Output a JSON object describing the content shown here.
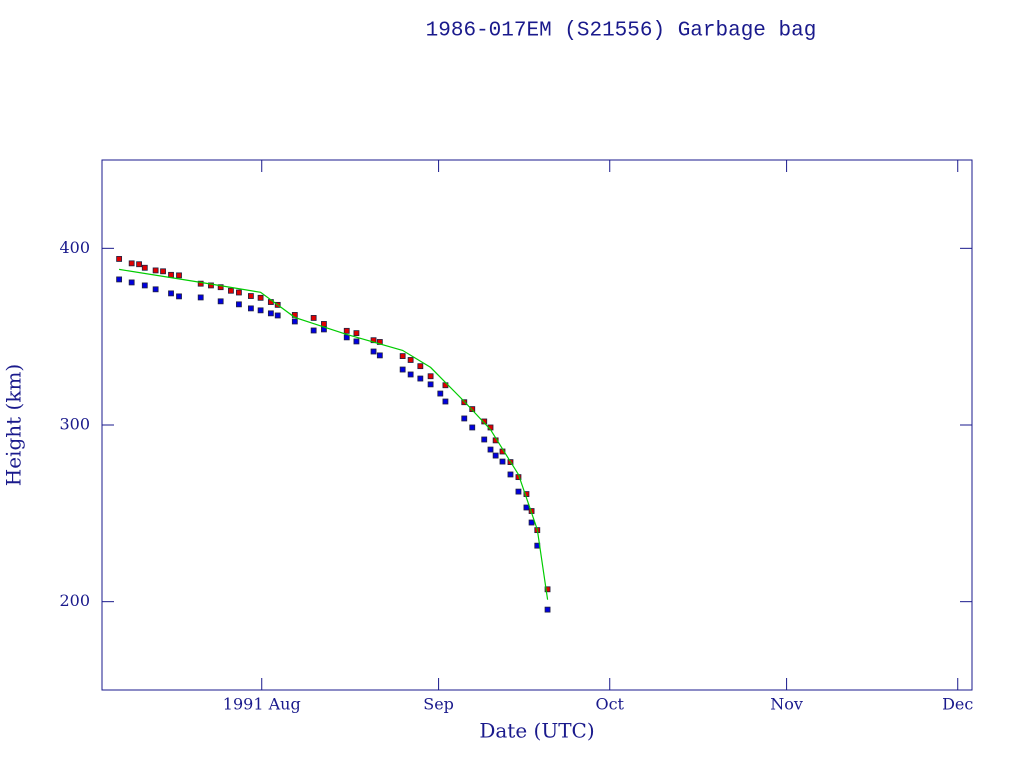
{
  "chart_data": {
    "type": "scatter",
    "title": "1986-017EM (S21556) Garbage bag",
    "x_label": "Date (UTC)",
    "y_label": "Height (km)",
    "xlim": [
      -28,
      124.5
    ],
    "xticks": [
      {
        "value": 0,
        "label": "1991 Aug"
      },
      {
        "value": 31,
        "label": "Sep"
      },
      {
        "value": 61,
        "label": "Oct"
      },
      {
        "value": 92,
        "label": "Nov"
      },
      {
        "value": 122,
        "label": "Dec"
      }
    ],
    "ylim": [
      150,
      450
    ],
    "yticks": [
      200,
      300,
      400
    ],
    "series": [
      {
        "color": "#e00000",
        "style": "markers",
        "x": [
          -25.0,
          -22.8,
          -21.5,
          -20.5,
          -18.6,
          -17.3,
          -15.9,
          -14.5,
          -10.7,
          -8.9,
          -7.2,
          -5.4,
          -4.0,
          -1.9,
          -0.2,
          1.6,
          2.8,
          5.8,
          9.1,
          10.9,
          14.9,
          16.6,
          19.6,
          20.7,
          24.7,
          26.1,
          27.8,
          29.6,
          32.2,
          35.5,
          36.9,
          39.0,
          40.1,
          41.0,
          42.2,
          43.6,
          45.0,
          46.4,
          47.3,
          48.3,
          50.1
        ],
        "values": [
          394,
          391.5,
          391,
          389,
          387.5,
          387,
          385,
          384.7,
          380,
          379,
          378,
          376,
          375,
          373,
          372,
          369.6,
          368,
          362.3,
          360.6,
          357.2,
          353.3,
          352,
          348,
          347,
          339,
          336.8,
          333.3,
          327.6,
          322.5,
          312.9,
          309,
          302,
          298.6,
          291.3,
          285,
          279,
          270.5,
          260.9,
          251.3,
          240.5,
          207
        ]
      },
      {
        "color": "#0000e0",
        "style": "markers",
        "x": [
          -25.0,
          -22.8,
          -20.5,
          -18.6,
          -15.9,
          -14.5,
          -10.7,
          -7.2,
          -4.0,
          -1.9,
          -0.2,
          1.6,
          2.8,
          5.8,
          9.1,
          10.9,
          14.9,
          16.6,
          19.6,
          20.7,
          24.7,
          26.1,
          27.8,
          29.6,
          31.3,
          32.2,
          35.5,
          36.9,
          39.0,
          40.1,
          41.0,
          42.2,
          43.6,
          45.0,
          46.4,
          47.3,
          48.3,
          50.1
        ],
        "values": [
          382.4,
          380.7,
          379,
          376.8,
          374.5,
          372.8,
          372.2,
          370,
          368.3,
          366,
          364.9,
          363.2,
          362,
          358.6,
          353.5,
          354.1,
          349.6,
          347.3,
          341.6,
          339.4,
          331.4,
          328.6,
          326.3,
          323,
          317.8,
          313.3,
          303.7,
          298.6,
          291.8,
          286.1,
          282.7,
          279.3,
          272,
          262.3,
          253.3,
          244.8,
          231.7,
          195.5
        ]
      },
      {
        "color": "#00cc00",
        "style": "line",
        "x": [
          -25.0,
          -10.7,
          -0.2,
          5.8,
          14.9,
          24.7,
          29.6,
          35.5,
          40.1,
          45.0,
          48.3,
          50.1
        ],
        "values": [
          388.1,
          380.7,
          375.1,
          360.9,
          351.3,
          342.2,
          332.6,
          313.3,
          297.4,
          271.9,
          240.8,
          201.1
        ]
      }
    ]
  }
}
